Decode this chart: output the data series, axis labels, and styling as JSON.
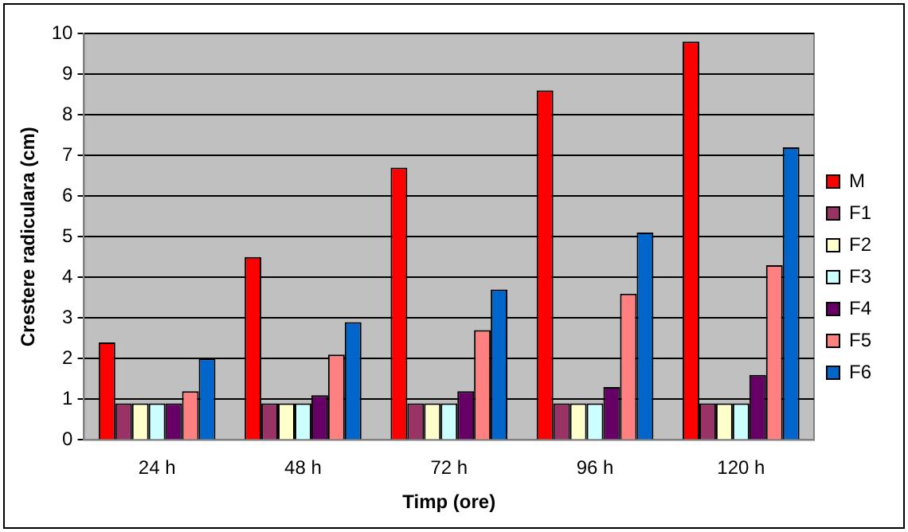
{
  "chart_data": {
    "type": "bar",
    "xlabel": "Timp (ore)",
    "ylabel": "Crestere radiculara (cm)",
    "categories": [
      "24 h",
      "48 h",
      "72 h",
      "96 h",
      "120 h"
    ],
    "series": [
      {
        "name": "M",
        "color": "#ff0000",
        "values": [
          2.4,
          4.5,
          6.7,
          8.6,
          9.8
        ]
      },
      {
        "name": "F1",
        "color": "#993366",
        "values": [
          0.9,
          0.9,
          0.9,
          0.9,
          0.9
        ]
      },
      {
        "name": "F2",
        "color": "#ffffcc",
        "values": [
          0.9,
          0.9,
          0.9,
          0.9,
          0.9
        ]
      },
      {
        "name": "F3",
        "color": "#ccffff",
        "values": [
          0.9,
          0.9,
          0.9,
          0.9,
          0.9
        ]
      },
      {
        "name": "F4",
        "color": "#660066",
        "values": [
          0.9,
          1.1,
          1.2,
          1.3,
          1.6
        ]
      },
      {
        "name": "F5",
        "color": "#ff8080",
        "values": [
          1.2,
          2.1,
          2.7,
          3.6,
          4.3
        ]
      },
      {
        "name": "F6",
        "color": "#0066cc",
        "values": [
          2.0,
          2.9,
          3.7,
          5.1,
          7.2
        ]
      }
    ],
    "ylim": [
      0,
      10
    ],
    "yticks": [
      0,
      1,
      2,
      3,
      4,
      5,
      6,
      7,
      8,
      9,
      10
    ],
    "grid": "y",
    "legend": "right"
  }
}
